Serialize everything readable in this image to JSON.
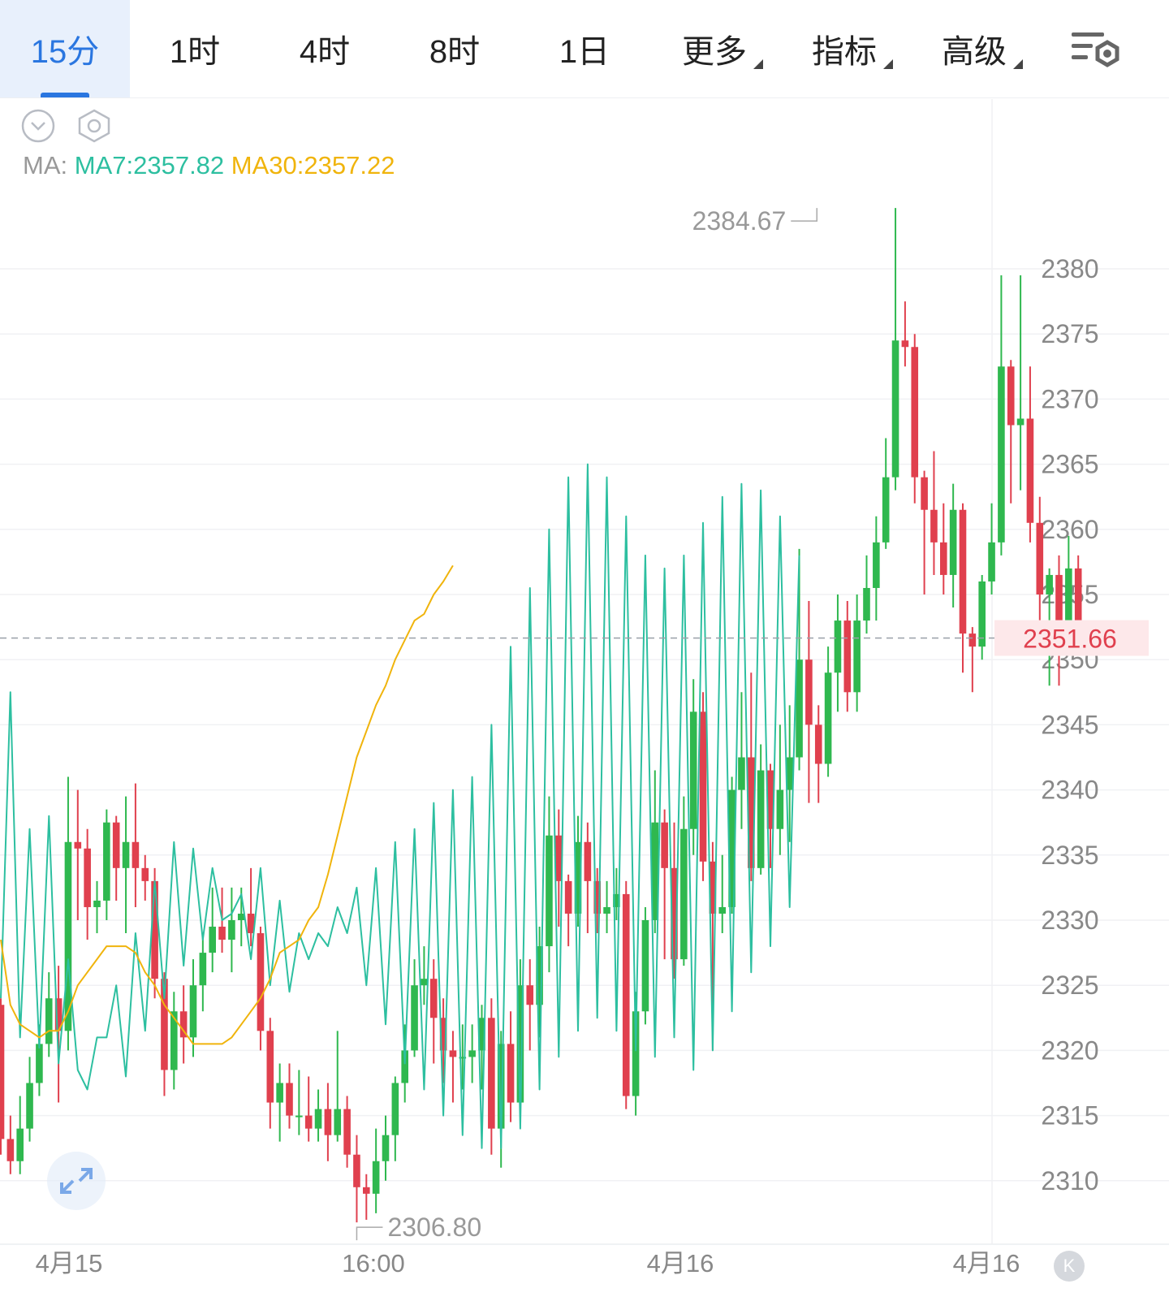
{
  "tabs": [
    {
      "label": "15分",
      "active": true,
      "has_dropdown": false
    },
    {
      "label": "1时",
      "active": false,
      "has_dropdown": false
    },
    {
      "label": "4时",
      "active": false,
      "has_dropdown": false
    },
    {
      "label": "8时",
      "active": false,
      "has_dropdown": false
    },
    {
      "label": "1日",
      "active": false,
      "has_dropdown": false
    },
    {
      "label": "更多",
      "active": false,
      "has_dropdown": true
    },
    {
      "label": "指标",
      "active": false,
      "has_dropdown": true
    },
    {
      "label": "高级",
      "active": false,
      "has_dropdown": true
    }
  ],
  "toolbar": {
    "collapse_icon": "chevron-down-circle-icon",
    "settings_icon": "hexagon-settings-icon",
    "chart_settings_icon": "list-settings-icon"
  },
  "ma": {
    "label": "MA:",
    "ma7": "MA7:2357.82",
    "ma30": "MA30:2357.22"
  },
  "colors": {
    "up": "#2fb84f",
    "down": "#e0404e",
    "ma7": "#2dbfa0",
    "ma30": "#f0b40c",
    "accent": "#2a76e0",
    "price_tag": "#e0404e"
  },
  "chart_data": {
    "type": "candlestick",
    "interval": "15分",
    "ylim": [
      2304,
      2388
    ],
    "y_ticks": [
      "2380",
      "2375",
      "2370",
      "2365",
      "2360",
      "2355",
      "2350",
      "2345",
      "2340",
      "2335",
      "2330",
      "2325",
      "2320",
      "2315",
      "2310"
    ],
    "x_labels": [
      "4月15",
      "16:00",
      "4月16",
      "4月16"
    ],
    "current_price": "2351.66",
    "high_label": "2384.67",
    "low_label": "2306.80",
    "candles": [
      [
        2323.5,
        2313.2,
        2324.0,
        2312.0
      ],
      [
        2313.2,
        2311.5,
        2315.0,
        2310.5
      ],
      [
        2311.5,
        2314.0,
        2316.5,
        2310.5
      ],
      [
        2314.0,
        2317.5,
        2319.5,
        2313.0
      ],
      [
        2317.5,
        2320.5,
        2322.0,
        2316.5
      ],
      [
        2320.5,
        2324.0,
        2326.0,
        2319.5
      ],
      [
        2324.0,
        2321.5,
        2326.5,
        2316.0
      ],
      [
        2321.5,
        2336.0,
        2341.0,
        2320.0
      ],
      [
        2336.0,
        2335.5,
        2340.0,
        2330.0
      ],
      [
        2335.5,
        2331.0,
        2337.0,
        2328.5
      ],
      [
        2331.0,
        2331.5,
        2333.0,
        2329.0
      ],
      [
        2331.5,
        2337.5,
        2338.5,
        2330.0
      ],
      [
        2337.5,
        2334.0,
        2338.0,
        2331.5
      ],
      [
        2334.0,
        2336.0,
        2339.5,
        2329.0
      ],
      [
        2336.0,
        2334.0,
        2340.5,
        2331.0
      ],
      [
        2334.0,
        2333.0,
        2335.0,
        2331.5
      ],
      [
        2333.0,
        2325.5,
        2334.0,
        2324.0
      ],
      [
        2325.5,
        2318.5,
        2326.0,
        2316.5
      ],
      [
        2318.5,
        2323.0,
        2324.5,
        2317.0
      ],
      [
        2323.0,
        2321.0,
        2325.0,
        2319.0
      ],
      [
        2321.0,
        2325.0,
        2327.0,
        2319.5
      ],
      [
        2325.0,
        2327.5,
        2329.0,
        2323.0
      ],
      [
        2327.5,
        2329.5,
        2332.5,
        2326.0
      ],
      [
        2329.5,
        2328.5,
        2332.5,
        2327.5
      ],
      [
        2328.5,
        2330.0,
        2332.5,
        2326.0
      ],
      [
        2330.0,
        2330.5,
        2332.5,
        2328.0
      ],
      [
        2330.5,
        2329.0,
        2334.0,
        2328.0
      ],
      [
        2329.0,
        2321.5,
        2329.5,
        2320.0
      ],
      [
        2321.5,
        2316.0,
        2322.5,
        2314.0
      ],
      [
        2316.0,
        2317.5,
        2319.0,
        2313.0
      ],
      [
        2317.5,
        2315.0,
        2319.0,
        2314.0
      ],
      [
        2315.0,
        2315.0,
        2318.5,
        2313.5
      ],
      [
        2315.0,
        2314.0,
        2318.0,
        2313.0
      ],
      [
        2314.0,
        2315.5,
        2317.0,
        2313.0
      ],
      [
        2315.5,
        2313.5,
        2317.5,
        2311.5
      ],
      [
        2313.5,
        2315.5,
        2321.5,
        2313.0
      ],
      [
        2315.5,
        2312.0,
        2316.5,
        2311.0
      ],
      [
        2312.0,
        2309.5,
        2313.5,
        2306.8
      ],
      [
        2309.5,
        2309.0,
        2310.5,
        2307.0
      ],
      [
        2309.0,
        2311.5,
        2314.0,
        2307.5
      ],
      [
        2311.5,
        2313.5,
        2315.0,
        2310.0
      ],
      [
        2313.5,
        2317.5,
        2318.0,
        2311.5
      ],
      [
        2317.5,
        2320.0,
        2322.0,
        2316.0
      ],
      [
        2320.0,
        2325.0,
        2327.0,
        2319.5
      ],
      [
        2325.0,
        2325.5,
        2328.0,
        2323.5
      ],
      [
        2325.5,
        2322.5,
        2327.0,
        2319.0
      ],
      [
        2322.5,
        2320.0,
        2324.0,
        2317.5
      ],
      [
        2320.0,
        2319.5,
        2321.5,
        2316.0
      ],
      [
        2319.5,
        2319.5,
        2322.0,
        2317.0
      ],
      [
        2319.5,
        2320.0,
        2322.0,
        2317.5
      ],
      [
        2320.0,
        2322.5,
        2323.5,
        2317.0
      ],
      [
        2322.5,
        2314.0,
        2324.0,
        2312.0
      ],
      [
        2314.0,
        2320.5,
        2321.5,
        2311.0
      ],
      [
        2320.5,
        2316.0,
        2323.0,
        2314.5
      ],
      [
        2316.0,
        2325.0,
        2327.0,
        2315.5
      ],
      [
        2325.0,
        2323.5,
        2327.0,
        2320.0
      ],
      [
        2323.5,
        2328.0,
        2329.5,
        2321.0
      ],
      [
        2328.0,
        2336.5,
        2339.5,
        2326.0
      ],
      [
        2336.5,
        2333.0,
        2338.5,
        2329.5
      ],
      [
        2333.0,
        2330.5,
        2333.5,
        2328.0
      ],
      [
        2330.5,
        2336.0,
        2338.0,
        2329.5
      ],
      [
        2336.0,
        2333.0,
        2337.5,
        2329.0
      ],
      [
        2333.0,
        2330.5,
        2334.0,
        2329.0
      ],
      [
        2330.5,
        2331.0,
        2333.0,
        2329.0
      ],
      [
        2331.0,
        2332.0,
        2334.0,
        2330.0
      ],
      [
        2332.0,
        2316.5,
        2333.0,
        2315.5
      ],
      [
        2316.5,
        2323.0,
        2324.5,
        2315.0
      ],
      [
        2323.0,
        2330.0,
        2331.0,
        2322.0
      ],
      [
        2330.0,
        2337.5,
        2341.5,
        2329.0
      ],
      [
        2337.5,
        2334.0,
        2338.5,
        2327.0
      ],
      [
        2334.0,
        2327.0,
        2337.5,
        2325.5
      ],
      [
        2327.0,
        2337.0,
        2339.5,
        2326.5
      ],
      [
        2337.0,
        2346.0,
        2348.5,
        2335.0
      ],
      [
        2346.0,
        2334.5,
        2347.5,
        2333.0
      ],
      [
        2334.5,
        2330.5,
        2336.0,
        2320.0
      ],
      [
        2330.5,
        2331.0,
        2335.0,
        2329.0
      ],
      [
        2331.0,
        2340.0,
        2341.0,
        2330.5
      ],
      [
        2340.0,
        2342.5,
        2347.5,
        2337.0
      ],
      [
        2342.5,
        2334.0,
        2349.0,
        2333.0
      ],
      [
        2334.0,
        2341.5,
        2343.5,
        2333.5
      ],
      [
        2341.5,
        2337.0,
        2342.0,
        2334.0
      ],
      [
        2337.0,
        2340.0,
        2345.0,
        2335.0
      ],
      [
        2340.0,
        2342.5,
        2346.5,
        2336.0
      ],
      [
        2342.5,
        2350.0,
        2358.5,
        2341.5
      ],
      [
        2350.0,
        2345.0,
        2354.5,
        2339.0
      ],
      [
        2345.0,
        2342.0,
        2346.5,
        2339.0
      ],
      [
        2342.0,
        2349.0,
        2351.0,
        2341.0
      ],
      [
        2349.0,
        2353.0,
        2355.0,
        2346.0
      ],
      [
        2353.0,
        2347.5,
        2354.5,
        2346.0
      ],
      [
        2347.5,
        2353.0,
        2355.0,
        2346.0
      ],
      [
        2353.0,
        2355.5,
        2358.0,
        2352.0
      ],
      [
        2355.5,
        2359.0,
        2361.0,
        2353.0
      ],
      [
        2359.0,
        2364.0,
        2367.0,
        2358.5
      ],
      [
        2364.0,
        2374.5,
        2384.67,
        2363.0
      ],
      [
        2374.5,
        2374.0,
        2377.5,
        2372.5
      ],
      [
        2374.0,
        2364.0,
        2375.0,
        2362.0
      ],
      [
        2364.0,
        2361.5,
        2364.5,
        2355.0
      ],
      [
        2361.5,
        2359.0,
        2366.0,
        2356.5
      ],
      [
        2359.0,
        2356.5,
        2362.0,
        2355.0
      ],
      [
        2356.5,
        2361.5,
        2363.5,
        2354.0
      ],
      [
        2361.5,
        2352.0,
        2362.0,
        2349.0
      ],
      [
        2352.0,
        2351.0,
        2352.5,
        2347.5
      ],
      [
        2351.0,
        2356.0,
        2356.5,
        2350.0
      ],
      [
        2356.0,
        2359.0,
        2362.0,
        2355.0
      ],
      [
        2359.0,
        2372.5,
        2379.5,
        2358.0
      ],
      [
        2372.5,
        2368.0,
        2373.0,
        2362.0
      ],
      [
        2368.0,
        2368.5,
        2379.5,
        2363.0
      ],
      [
        2368.5,
        2360.5,
        2372.5,
        2359.0
      ],
      [
        2360.5,
        2355.0,
        2362.5,
        2352.5
      ],
      [
        2355.0,
        2356.5,
        2357.0,
        2348.0
      ],
      [
        2356.5,
        2353.0,
        2358.0,
        2348.0
      ],
      [
        2353.0,
        2357.0,
        2359.5,
        2352.0
      ],
      [
        2357.0,
        2351.66,
        2358.0,
        2350.5
      ]
    ],
    "ma7": [
      [
        2324.0,
        2347.5
      ],
      [
        2321.0,
        2337.0
      ],
      [
        2320.2,
        2338.0
      ],
      [
        2319.0,
        2327.0
      ],
      [
        2318.5,
        2317.0
      ],
      [
        2321.0,
        2321.0
      ],
      [
        2325.0,
        2318.0
      ],
      [
        2329.0,
        2321.5
      ],
      [
        2333.0,
        2324.0
      ],
      [
        2336.0,
        2326.5
      ],
      [
        2335.5,
        2328.5
      ],
      [
        2334.0,
        2330.0
      ],
      [
        2330.5,
        2332.0
      ],
      [
        2327.0,
        2334.0
      ],
      [
        2325.0,
        2331.5
      ],
      [
        2324.5,
        2329.0
      ],
      [
        2327.0,
        2329.0
      ],
      [
        2328.0,
        2331.0
      ],
      [
        2329.0,
        2332.5
      ],
      [
        2325.0,
        2334.0
      ],
      [
        2322.0,
        2336.0
      ],
      [
        2319.0,
        2337.0
      ],
      [
        2317.0,
        2339.0
      ],
      [
        2315.0,
        2340.0
      ],
      [
        2313.5,
        2341.0
      ],
      [
        2312.5,
        2345.0
      ],
      [
        2312.5,
        2351.0
      ],
      [
        2314.0,
        2355.5
      ],
      [
        2317.0,
        2360.0
      ],
      [
        2319.5,
        2364.0
      ],
      [
        2321.5,
        2365.0
      ],
      [
        2322.5,
        2364.0
      ],
      [
        2321.5,
        2361.0
      ],
      [
        2320.0,
        2358.0
      ],
      [
        2319.5,
        2357.0
      ],
      [
        2321.0,
        2358.0
      ],
      [
        2318.5,
        2360.5
      ],
      [
        2320.0,
        2362.5
      ],
      [
        2323.0,
        2363.5
      ],
      [
        2326.0,
        2363.0
      ],
      [
        2328.0,
        2361.0
      ],
      [
        2331.0,
        2358.0
      ]
    ],
    "ma30": [
      [
        2328.5,
        2323.5
      ],
      [
        2322.0,
        2321.5
      ],
      [
        2321.0,
        2321.5
      ],
      [
        2321.5,
        2323.0
      ],
      [
        2325.0,
        2326.0
      ],
      [
        2327.0,
        2328.0
      ],
      [
        2328.0,
        2328.0
      ],
      [
        2327.5,
        2326.0
      ],
      [
        2325.0,
        2323.5
      ],
      [
        2322.5,
        2321.5
      ],
      [
        2320.5,
        2320.5
      ],
      [
        2320.5,
        2320.5
      ],
      [
        2321.0,
        2322.0
      ],
      [
        2323.0,
        2324.0
      ],
      [
        2325.5,
        2327.5
      ],
      [
        2328.0,
        2328.5
      ],
      [
        2330.0,
        2331.0
      ],
      [
        2333.5,
        2336.5
      ],
      [
        2339.5,
        2342.5
      ],
      [
        2344.5,
        2346.5
      ],
      [
        2348.0,
        2350.0
      ],
      [
        2351.5,
        2353.0
      ],
      [
        2353.5,
        2355.0
      ],
      [
        2356.0,
        2357.22
      ]
    ]
  }
}
